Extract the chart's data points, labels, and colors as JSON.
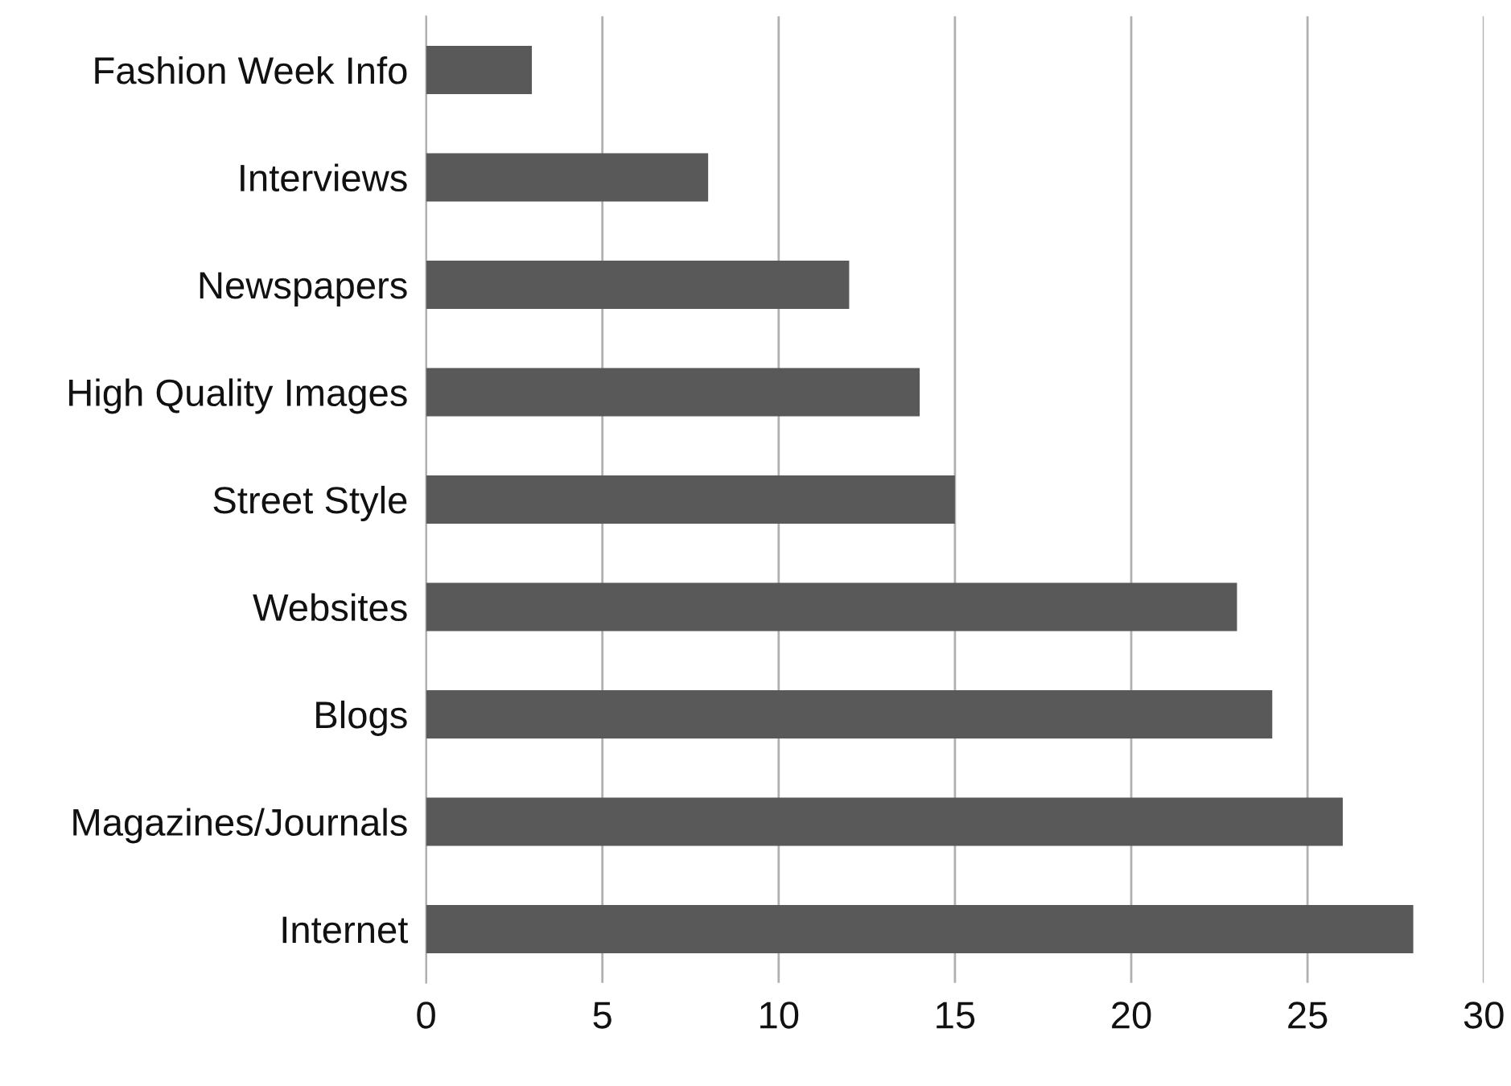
{
  "chart_data": {
    "type": "bar",
    "orientation": "horizontal",
    "categories": [
      "Fashion Week Info",
      "Interviews",
      "Newspapers",
      "High Quality Images",
      "Street Style",
      "Websites",
      "Blogs",
      "Magazines/Journals",
      "Internet"
    ],
    "values": [
      3,
      8,
      12,
      14,
      15,
      23,
      24,
      26,
      28
    ],
    "color": "#595959",
    "xlim": [
      0,
      30
    ],
    "xticks": [
      0,
      5,
      10,
      15,
      20,
      25,
      30
    ],
    "grid": "x"
  }
}
